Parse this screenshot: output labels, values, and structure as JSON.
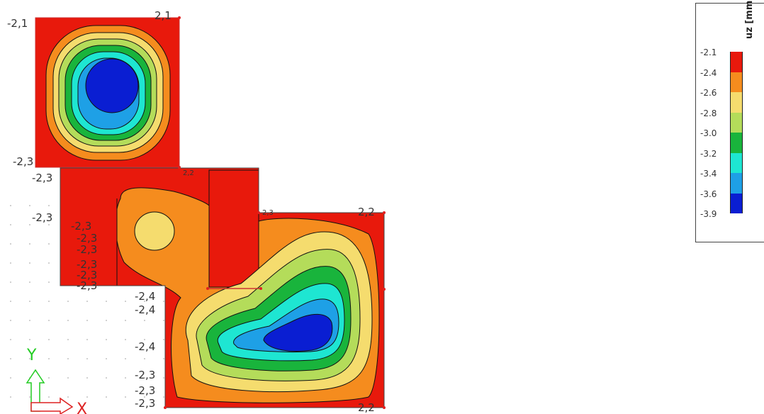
{
  "axes": {
    "y_label": "Y",
    "x_label": "X"
  },
  "legend": {
    "title": "uz [mm]",
    "levels": [
      "-2.1",
      "-2.4",
      "-2.6",
      "-2.8",
      "-3.0",
      "-3.2",
      "-3.4",
      "-3.6",
      "-3.9"
    ],
    "colors": [
      "#e8190c",
      "#f58c1e",
      "#f5dc6e",
      "#b4dc5a",
      "#19b43c",
      "#1ee6d2",
      "#1ea0e6",
      "#0a1ed2"
    ]
  },
  "node_labels": {
    "tl_top_left": "-2,1",
    "tl_top_right": "2,1",
    "tl_bottom_left": "-2,3",
    "mid_left_1": "-2,3",
    "mid_left_2": "-2,3",
    "mid_a": "-2,3",
    "mid_b": "-2,3",
    "mid_c": "-2,3",
    "mid_d": "-2,3",
    "mid_e": "-2,3",
    "mid_f": "-2,3",
    "mid_g": "-2,4",
    "mid_h": "-2,4",
    "mid_i": "-2,3",
    "mid_j": "-2,3",
    "mid_k": "-2,3",
    "right_top": "2,2",
    "right_bottom": "2,2",
    "inner_top": "2,3",
    "top_small": "2,2"
  }
}
